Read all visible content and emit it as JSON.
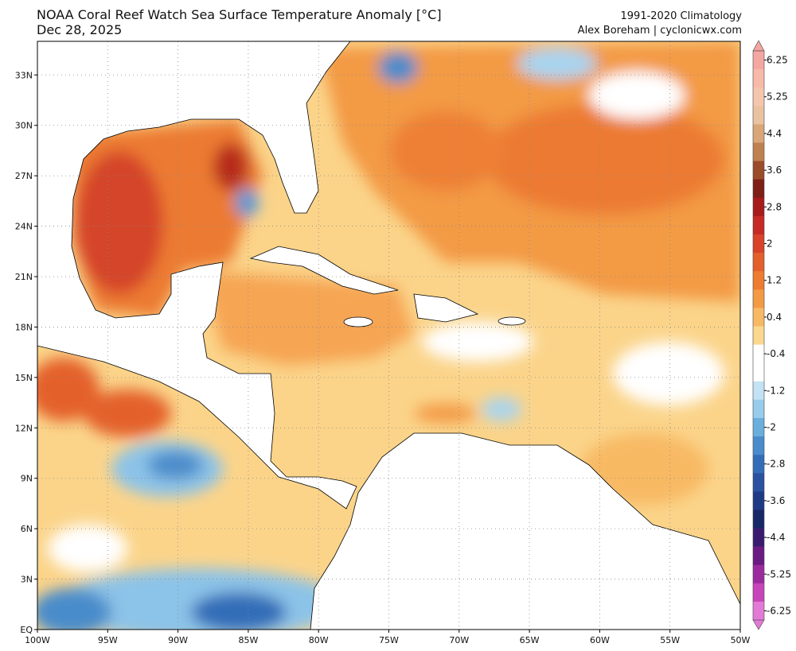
{
  "header": {
    "title": "NOAA Coral Reef Watch Sea Surface Temperature Anomaly [°C]",
    "date": "Dec 28, 2025",
    "climatology": "1991-2020 Climatology",
    "credit": "Alex Boreham | cyclonicwx.com"
  },
  "map": {
    "lon_range": [
      -100,
      -50
    ],
    "lat_range": [
      0,
      35
    ],
    "lat_ticks": [
      {
        "value": 0,
        "label": "EQ"
      },
      {
        "value": 3,
        "label": "3N"
      },
      {
        "value": 6,
        "label": "6N"
      },
      {
        "value": 9,
        "label": "9N"
      },
      {
        "value": 12,
        "label": "12N"
      },
      {
        "value": 15,
        "label": "15N"
      },
      {
        "value": 18,
        "label": "18N"
      },
      {
        "value": 21,
        "label": "21N"
      },
      {
        "value": 24,
        "label": "24N"
      },
      {
        "value": 27,
        "label": "27N"
      },
      {
        "value": 30,
        "label": "30N"
      },
      {
        "value": 33,
        "label": "33N"
      }
    ],
    "lon_ticks": [
      {
        "value": -100,
        "label": "100W"
      },
      {
        "value": -95,
        "label": "95W"
      },
      {
        "value": -90,
        "label": "90W"
      },
      {
        "value": -85,
        "label": "85W"
      },
      {
        "value": -80,
        "label": "80W"
      },
      {
        "value": -75,
        "label": "75W"
      },
      {
        "value": -70,
        "label": "70W"
      },
      {
        "value": -65,
        "label": "65W"
      },
      {
        "value": -60,
        "label": "60W"
      },
      {
        "value": -55,
        "label": "55W"
      },
      {
        "value": -50,
        "label": "50W"
      }
    ]
  },
  "colorbar": {
    "ticks": [
      6.25,
      5.25,
      4.4,
      3.6,
      2.8,
      2,
      1.2,
      0.4,
      -0.4,
      -1.2,
      -2,
      -2.8,
      -3.6,
      -4.4,
      -5.25,
      -6.25
    ],
    "colors": [
      "#f4a6a0",
      "#f7b9a8",
      "#f5c6ae",
      "#e9c2a0",
      "#d9a679",
      "#bf8150",
      "#9b4c2a",
      "#7f1f17",
      "#a81b1b",
      "#c62a24",
      "#d8432a",
      "#e35f2b",
      "#ed7b30",
      "#f39a45",
      "#f8b964",
      "#fbd88e",
      "#ffffff",
      "#ffffff",
      "#c3e3f5",
      "#98ccec",
      "#6aaedd",
      "#4a8ccb",
      "#336db8",
      "#2a52a0",
      "#1f3a84",
      "#172868",
      "#3a1a6e",
      "#6a1a82",
      "#9a2a9e",
      "#c645b8",
      "#e37ad7"
    ]
  }
}
